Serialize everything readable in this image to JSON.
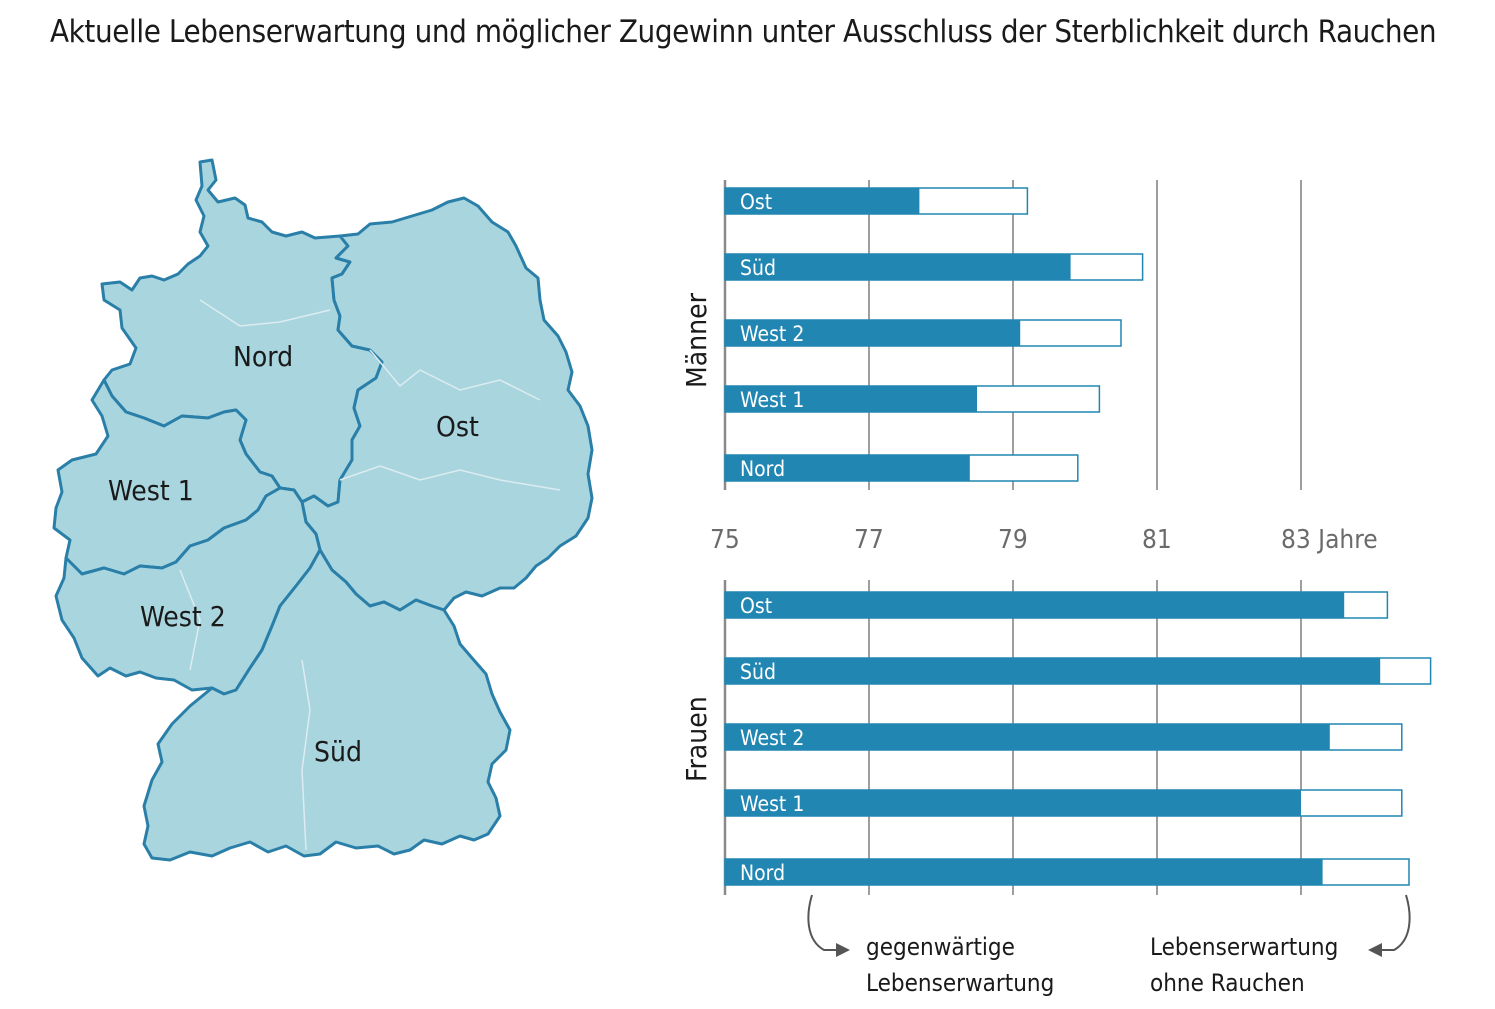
{
  "title": "Aktuelle Lebenserwartung und möglicher Zugewinn unter Ausschluss der Sterblichkeit durch Rauchen",
  "map": {
    "regions": [
      {
        "name": "Nord"
      },
      {
        "name": "Ost"
      },
      {
        "name": "West 1"
      },
      {
        "name": "West 2"
      },
      {
        "name": "Süd"
      }
    ],
    "colors": {
      "fill": "#a9d5df",
      "stroke": "#2a7fa8",
      "inner": "#dcecf0"
    }
  },
  "chart_data": {
    "type": "bar",
    "orientation": "horizontal",
    "stacked": "overlay",
    "xlim": [
      75,
      85
    ],
    "ticks": [
      75,
      77,
      79,
      81,
      83
    ],
    "tick_labels": [
      "75",
      "77",
      "79",
      "81",
      "83 Jahre"
    ],
    "categories": [
      "Ost",
      "Süd",
      "West 2",
      "West 1",
      "Nord"
    ],
    "groups": [
      {
        "name": "Männer",
        "current": [
          77.7,
          79.8,
          79.1,
          78.5,
          78.4
        ],
        "without_smoking": [
          79.2,
          80.8,
          80.5,
          80.2,
          79.9
        ]
      },
      {
        "name": "Frauen",
        "current": [
          83.6,
          84.1,
          83.4,
          83.0,
          83.3
        ],
        "without_smoking": [
          84.2,
          84.8,
          84.4,
          84.4,
          84.5
        ]
      }
    ],
    "legend": {
      "current": "gegenwärtige Lebenserwartung",
      "current_lines": [
        "gegenwärtige",
        "Lebenserwartung"
      ],
      "without": "Lebenserwartung ohne Rauchen",
      "without_lines": [
        "Lebenserwartung",
        "ohne Rauchen"
      ]
    },
    "colors": {
      "bar": "#2186b2",
      "outline": "#2186b2",
      "grid": "#9e9e9e",
      "axis": "#8a8a8a"
    }
  }
}
